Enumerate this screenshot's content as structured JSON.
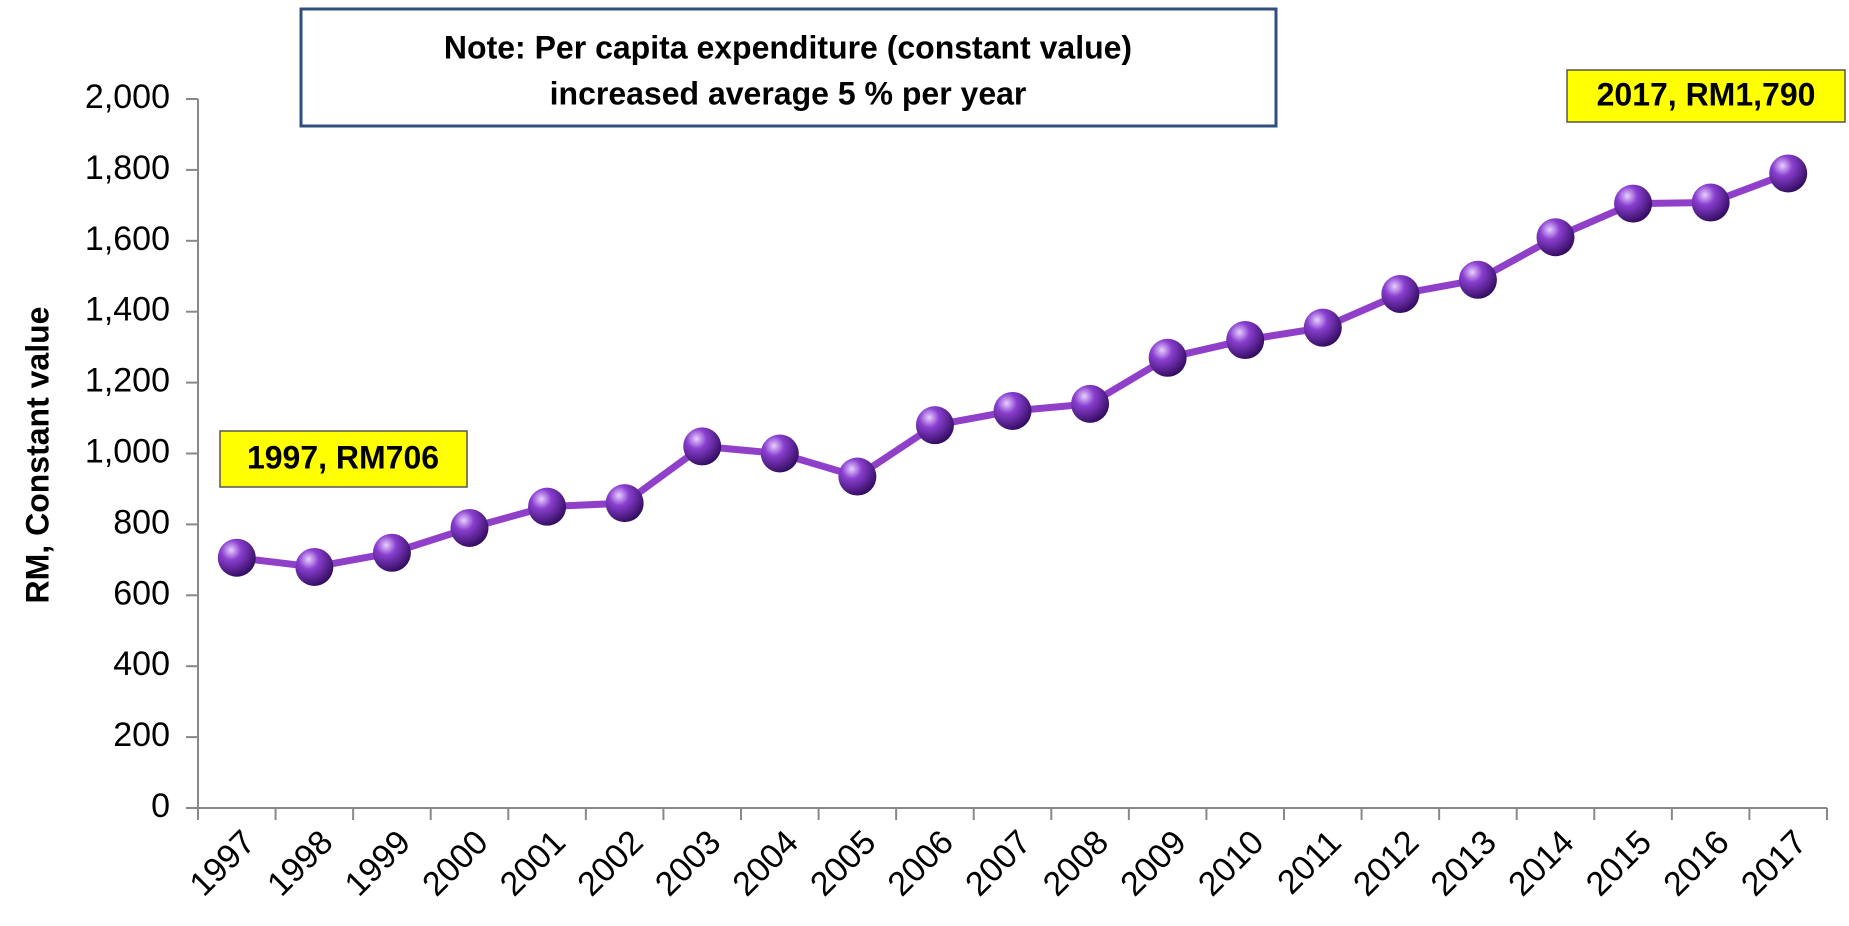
{
  "chart_data": {
    "type": "line",
    "note": [
      "Note: Per capita expenditure (constant  value)",
      "increased average 5 % per year"
    ],
    "annotations": [
      "1997, RM706",
      "2017, RM1,790"
    ],
    "y_label": "RM, Constant value",
    "categories": [
      "1997",
      "1998",
      "1999",
      "2000",
      "2001",
      "2002",
      "2003",
      "2004",
      "2005",
      "2006",
      "2007",
      "2008",
      "2009",
      "2010",
      "2011",
      "2012",
      "2013",
      "2014",
      "2015",
      "2016",
      "2017"
    ],
    "series": [
      {
        "name": "Per capita expenditure",
        "color": "#9040c8",
        "values": [
          706,
          680,
          720,
          790,
          850,
          860,
          1020,
          1000,
          935,
          1080,
          1120,
          1140,
          1270,
          1320,
          1355,
          1450,
          1490,
          1610,
          1705,
          1708,
          1790
        ]
      }
    ],
    "ylim": [
      0,
      2000
    ],
    "yticks": [
      0,
      200,
      400,
      600,
      800,
      {
        "value": 1000,
        "label": "1,000"
      },
      {
        "value": 1200,
        "label": "1,200"
      },
      {
        "value": 1400,
        "label": "1,400"
      },
      {
        "value": 1600,
        "label": "1,600"
      },
      {
        "value": 1800,
        "label": "1,800"
      },
      {
        "value": 2000,
        "label": "2,000"
      }
    ],
    "grid": false
  }
}
